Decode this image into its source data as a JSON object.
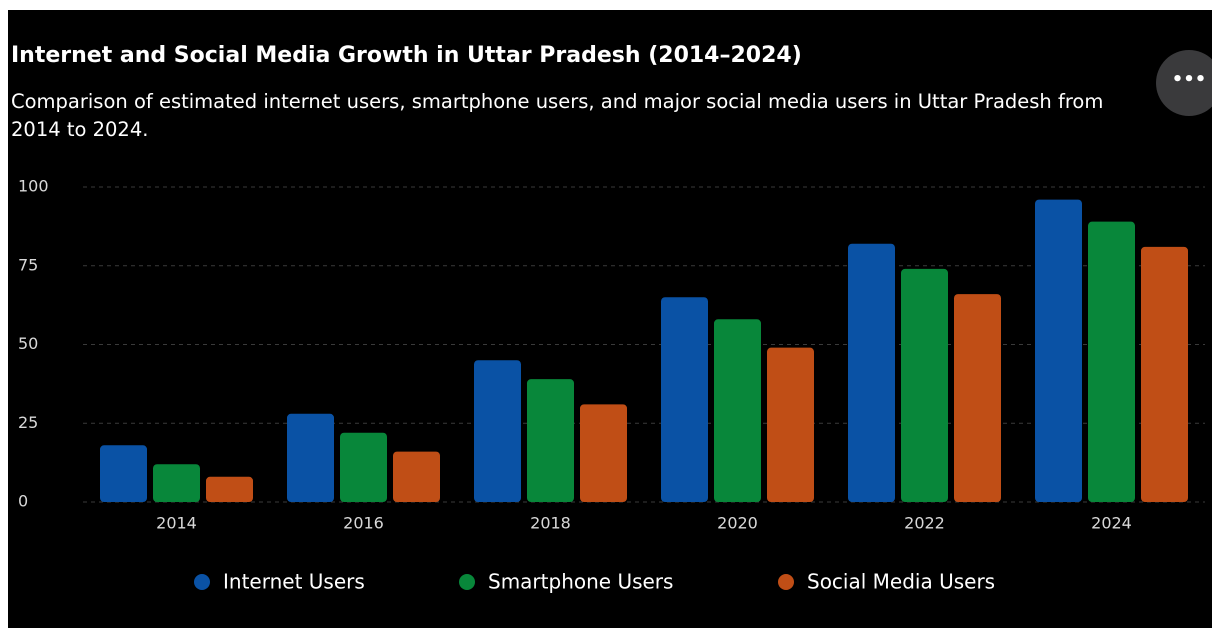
{
  "chart_data": {
    "type": "bar",
    "title": "Internet and Social Media Growth in Uttar Pradesh (2014–2024)",
    "subtitle": "Comparison of estimated internet users, smartphone users, and major social media users in Uttar Pradesh from 2014 to 2024.",
    "categories": [
      "2014",
      "2016",
      "2018",
      "2020",
      "2022",
      "2024"
    ],
    "series": [
      {
        "name": "Internet Users",
        "color": "#0a52a5",
        "values": [
          18,
          28,
          45,
          65,
          82,
          96
        ]
      },
      {
        "name": "Smartphone Users",
        "color": "#08873a",
        "values": [
          12,
          22,
          39,
          58,
          74,
          89
        ]
      },
      {
        "name": "Social Media Users",
        "color": "#c04e16",
        "values": [
          8,
          16,
          31,
          49,
          66,
          81
        ]
      }
    ],
    "ylim": [
      0,
      100
    ],
    "yticks": [
      0,
      25,
      50,
      75,
      100
    ],
    "grid": true,
    "legend": "bottom"
  }
}
